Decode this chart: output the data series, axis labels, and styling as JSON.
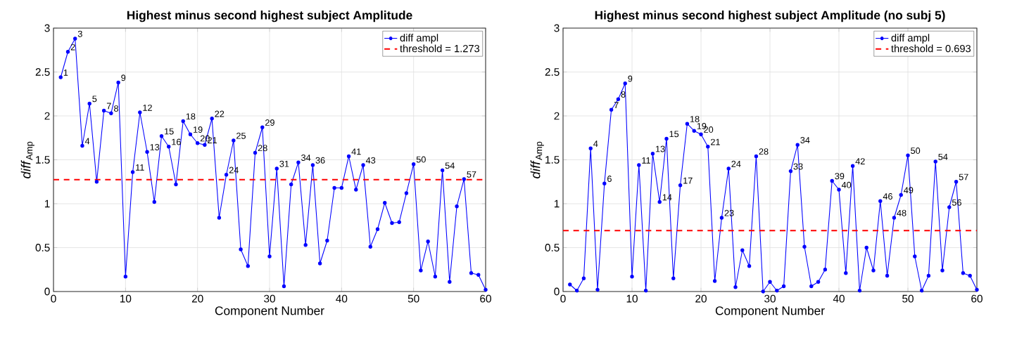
{
  "chart_data": [
    {
      "type": "line",
      "title": "Highest minus second highest subject Amplitude",
      "xlabel": "Component Number",
      "ylabel": "*diff*$_{Amp}$",
      "x": [
        1,
        2,
        3,
        4,
        5,
        6,
        7,
        8,
        9,
        10,
        11,
        12,
        13,
        14,
        15,
        16,
        17,
        18,
        19,
        20,
        21,
        22,
        23,
        24,
        25,
        26,
        27,
        28,
        29,
        30,
        31,
        32,
        33,
        34,
        35,
        36,
        37,
        38,
        39,
        40,
        41,
        42,
        43,
        44,
        45,
        46,
        47,
        48,
        49,
        50,
        51,
        52,
        53,
        54,
        55,
        56,
        57,
        58,
        59,
        60
      ],
      "series": [
        {
          "name": "diff ampl",
          "color": "#0000ff",
          "values": [
            2.44,
            2.73,
            2.88,
            1.66,
            2.14,
            1.25,
            2.06,
            2.03,
            2.38,
            0.17,
            1.36,
            2.04,
            1.59,
            1.02,
            1.77,
            1.65,
            1.22,
            1.94,
            1.79,
            1.69,
            1.67,
            1.97,
            0.84,
            1.33,
            1.72,
            0.48,
            0.29,
            1.58,
            1.87,
            0.4,
            1.4,
            0.06,
            1.22,
            1.47,
            0.53,
            1.44,
            0.32,
            0.58,
            1.18,
            1.18,
            1.54,
            1.16,
            1.44,
            0.51,
            0.71,
            1.01,
            0.78,
            0.79,
            1.12,
            1.45,
            0.24,
            0.57,
            0.17,
            1.38,
            0.11,
            0.97,
            1.28,
            0.21,
            0.19,
            0.02
          ]
        }
      ],
      "ref_lines": [
        {
          "axis": "y",
          "value": 1.273,
          "label": "threshold = 1.273",
          "color": "#ff0000",
          "line_style": "dashed"
        }
      ],
      "xlim": [
        0,
        60
      ],
      "xticks": [
        0,
        10,
        20,
        30,
        40,
        50,
        60
      ],
      "ylim": [
        0,
        3
      ],
      "yticks": [
        0,
        0.5,
        1,
        1.5,
        2,
        2.5,
        3
      ],
      "grid": true,
      "legend": "top right",
      "marker": "circle",
      "line_style": "solid",
      "annotations": [
        {
          "text": "1",
          "x": 1,
          "y": 2.44
        },
        {
          "text": "2",
          "x": 2,
          "y": 2.73
        },
        {
          "text": "3",
          "x": 3,
          "y": 2.88
        },
        {
          "text": "4",
          "x": 4,
          "y": 1.66
        },
        {
          "text": "5",
          "x": 5,
          "y": 2.14
        },
        {
          "text": "7",
          "x": 7,
          "y": 2.06
        },
        {
          "text": "8",
          "x": 8,
          "y": 2.03
        },
        {
          "text": "9",
          "x": 9,
          "y": 2.38
        },
        {
          "text": "11",
          "x": 11,
          "y": 1.36
        },
        {
          "text": "12",
          "x": 12,
          "y": 2.04
        },
        {
          "text": "13",
          "x": 13,
          "y": 1.59
        },
        {
          "text": "15",
          "x": 15,
          "y": 1.77
        },
        {
          "text": "16",
          "x": 16,
          "y": 1.65
        },
        {
          "text": "18",
          "x": 18,
          "y": 1.94
        },
        {
          "text": "19",
          "x": 19,
          "y": 1.79
        },
        {
          "text": "20",
          "x": 20,
          "y": 1.69
        },
        {
          "text": "21",
          "x": 21,
          "y": 1.67
        },
        {
          "text": "22",
          "x": 22,
          "y": 1.97
        },
        {
          "text": "24",
          "x": 24,
          "y": 1.33
        },
        {
          "text": "25",
          "x": 25,
          "y": 1.72
        },
        {
          "text": "28",
          "x": 28,
          "y": 1.58
        },
        {
          "text": "29",
          "x": 29,
          "y": 1.87
        },
        {
          "text": "31",
          "x": 31,
          "y": 1.4
        },
        {
          "text": "34",
          "x": 34,
          "y": 1.47
        },
        {
          "text": "36",
          "x": 36,
          "y": 1.44
        },
        {
          "text": "41",
          "x": 41,
          "y": 1.54
        },
        {
          "text": "43",
          "x": 43,
          "y": 1.44
        },
        {
          "text": "50",
          "x": 50,
          "y": 1.45
        },
        {
          "text": "54",
          "x": 54,
          "y": 1.38
        },
        {
          "text": "57",
          "x": 57,
          "y": 1.28
        }
      ]
    },
    {
      "type": "line",
      "title": "Highest minus second highest subject Amplitude (no subj 5)",
      "xlabel": "Component Number",
      "ylabel": "*diff*$_{Amp}$",
      "x": [
        1,
        2,
        3,
        4,
        5,
        6,
        7,
        8,
        9,
        10,
        11,
        12,
        13,
        14,
        15,
        16,
        17,
        18,
        19,
        20,
        21,
        22,
        23,
        24,
        25,
        26,
        27,
        28,
        29,
        30,
        31,
        32,
        33,
        34,
        35,
        36,
        37,
        38,
        39,
        40,
        41,
        42,
        43,
        44,
        45,
        46,
        47,
        48,
        49,
        50,
        51,
        52,
        53,
        54,
        55,
        56,
        57,
        58,
        59,
        60
      ],
      "series": [
        {
          "name": "diff ampl",
          "color": "#0000ff",
          "values": [
            0.08,
            0.01,
            0.15,
            1.63,
            0.02,
            1.23,
            2.07,
            2.19,
            2.37,
            0.17,
            1.44,
            0.01,
            1.57,
            1.02,
            1.74,
            0.15,
            1.21,
            1.91,
            1.83,
            1.79,
            1.65,
            0.12,
            0.84,
            1.4,
            0.05,
            0.47,
            0.29,
            1.54,
            0.0,
            0.11,
            0.01,
            0.06,
            1.37,
            1.67,
            0.51,
            0.06,
            0.11,
            0.25,
            1.26,
            1.16,
            0.21,
            1.43,
            0.01,
            0.5,
            0.24,
            1.03,
            0.18,
            0.84,
            1.1,
            1.55,
            0.4,
            0.01,
            0.18,
            1.48,
            0.24,
            0.96,
            1.25,
            0.21,
            0.18,
            0.02
          ]
        }
      ],
      "ref_lines": [
        {
          "axis": "y",
          "value": 0.693,
          "label": "threshold = 0.693",
          "color": "#ff0000",
          "line_style": "dashed"
        }
      ],
      "xlim": [
        0,
        60
      ],
      "xticks": [
        0,
        10,
        20,
        30,
        40,
        50,
        60
      ],
      "ylim": [
        0,
        3
      ],
      "yticks": [
        0,
        0.5,
        1,
        1.5,
        2,
        2.5,
        3
      ],
      "grid": true,
      "legend": "top right",
      "marker": "circle",
      "line_style": "solid",
      "annotations": [
        {
          "text": "4",
          "x": 4,
          "y": 1.63
        },
        {
          "text": "6",
          "x": 6,
          "y": 1.23
        },
        {
          "text": "7",
          "x": 7,
          "y": 2.07
        },
        {
          "text": "8",
          "x": 8,
          "y": 2.19
        },
        {
          "text": "9",
          "x": 9,
          "y": 2.37
        },
        {
          "text": "11",
          "x": 11,
          "y": 1.44
        },
        {
          "text": "13",
          "x": 13,
          "y": 1.57
        },
        {
          "text": "14",
          "x": 14,
          "y": 1.02
        },
        {
          "text": "15",
          "x": 15,
          "y": 1.74
        },
        {
          "text": "17",
          "x": 17,
          "y": 1.21
        },
        {
          "text": "18",
          "x": 18,
          "y": 1.91
        },
        {
          "text": "19",
          "x": 19,
          "y": 1.83
        },
        {
          "text": "20",
          "x": 20,
          "y": 1.79
        },
        {
          "text": "21",
          "x": 21,
          "y": 1.65
        },
        {
          "text": "23",
          "x": 23,
          "y": 0.84
        },
        {
          "text": "24",
          "x": 24,
          "y": 1.4
        },
        {
          "text": "28",
          "x": 28,
          "y": 1.54
        },
        {
          "text": "33",
          "x": 33,
          "y": 1.37
        },
        {
          "text": "34",
          "x": 34,
          "y": 1.67
        },
        {
          "text": "39",
          "x": 39,
          "y": 1.26
        },
        {
          "text": "40",
          "x": 40,
          "y": 1.16
        },
        {
          "text": "42",
          "x": 42,
          "y": 1.43
        },
        {
          "text": "46",
          "x": 46,
          "y": 1.03
        },
        {
          "text": "48",
          "x": 48,
          "y": 0.84
        },
        {
          "text": "49",
          "x": 49,
          "y": 1.1
        },
        {
          "text": "50",
          "x": 50,
          "y": 1.55
        },
        {
          "text": "54",
          "x": 54,
          "y": 1.48
        },
        {
          "text": "56",
          "x": 56,
          "y": 0.96
        },
        {
          "text": "57",
          "x": 57,
          "y": 1.25
        }
      ]
    }
  ]
}
